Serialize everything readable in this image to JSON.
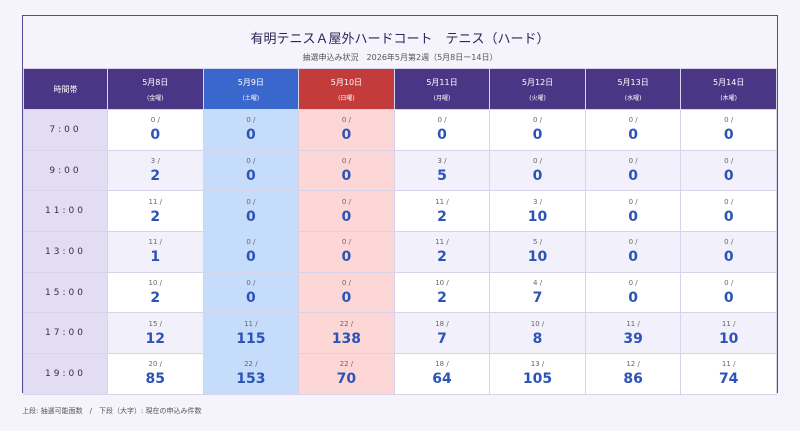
{
  "header": {
    "title": "有明テニスＡ屋外ハードコート　テニス（ハード）",
    "subtitle": "抽選申込み状況　2026年5月第2週（5月8日ー14日）"
  },
  "table": {
    "corner": "時間帯",
    "separator": "/",
    "columns": [
      {
        "date": "5月8日",
        "day": "(金曜)",
        "header_color": "#4b3585"
      },
      {
        "date": "5月9日",
        "day": "(土曜)",
        "header_color": "#3a67cc",
        "body_color": "#c6dcfb"
      },
      {
        "date": "5月10日",
        "day": "(日曜)",
        "header_color": "#c33b3b",
        "body_color": "#fdd6d6"
      },
      {
        "date": "5月11日",
        "day": "(月曜)",
        "header_color": "#4b3585"
      },
      {
        "date": "5月12日",
        "day": "(火曜)",
        "header_color": "#4b3585"
      },
      {
        "date": "5月13日",
        "day": "(水曜)",
        "header_color": "#4b3585"
      },
      {
        "date": "5月14日",
        "day": "(木曜)",
        "header_color": "#4b3585"
      }
    ],
    "rows": [
      {
        "time": "7:00",
        "cells": [
          {
            "available": 0,
            "applied": 0
          },
          {
            "available": 0,
            "applied": 0
          },
          {
            "available": 0,
            "applied": 0
          },
          {
            "available": 0,
            "applied": 0
          },
          {
            "available": 0,
            "applied": 0
          },
          {
            "available": 0,
            "applied": 0
          },
          {
            "available": 0,
            "applied": 0
          }
        ]
      },
      {
        "time": "9:00",
        "cells": [
          {
            "available": 3,
            "applied": 2
          },
          {
            "available": 0,
            "applied": 0
          },
          {
            "available": 0,
            "applied": 0
          },
          {
            "available": 3,
            "applied": 5
          },
          {
            "available": 0,
            "applied": 0
          },
          {
            "available": 0,
            "applied": 0
          },
          {
            "available": 0,
            "applied": 0
          }
        ]
      },
      {
        "time": "11:00",
        "cells": [
          {
            "available": 11,
            "applied": 2
          },
          {
            "available": 0,
            "applied": 0
          },
          {
            "available": 0,
            "applied": 0
          },
          {
            "available": 11,
            "applied": 2
          },
          {
            "available": 3,
            "applied": 10
          },
          {
            "available": 0,
            "applied": 0
          },
          {
            "available": 0,
            "applied": 0
          }
        ]
      },
      {
        "time": "13:00",
        "cells": [
          {
            "available": 11,
            "applied": 1
          },
          {
            "available": 0,
            "applied": 0
          },
          {
            "available": 0,
            "applied": 0
          },
          {
            "available": 11,
            "applied": 2
          },
          {
            "available": 5,
            "applied": 10
          },
          {
            "available": 0,
            "applied": 0
          },
          {
            "available": 0,
            "applied": 0
          }
        ]
      },
      {
        "time": "15:00",
        "cells": [
          {
            "available": 10,
            "applied": 2
          },
          {
            "available": 0,
            "applied": 0
          },
          {
            "available": 0,
            "applied": 0
          },
          {
            "available": 10,
            "applied": 2
          },
          {
            "available": 4,
            "applied": 7
          },
          {
            "available": 0,
            "applied": 0
          },
          {
            "available": 0,
            "applied": 0
          }
        ]
      },
      {
        "time": "17:00",
        "cells": [
          {
            "available": 15,
            "applied": 12
          },
          {
            "available": 11,
            "applied": 115
          },
          {
            "available": 22,
            "applied": 138
          },
          {
            "available": 18,
            "applied": 7
          },
          {
            "available": 10,
            "applied": 8
          },
          {
            "available": 11,
            "applied": 39
          },
          {
            "available": 11,
            "applied": 10
          }
        ]
      },
      {
        "time": "19:00",
        "cells": [
          {
            "available": 20,
            "applied": 85
          },
          {
            "available": 22,
            "applied": 153
          },
          {
            "available": 22,
            "applied": 70
          },
          {
            "available": 18,
            "applied": 64
          },
          {
            "available": 13,
            "applied": 105
          },
          {
            "available": 12,
            "applied": 86
          },
          {
            "available": 11,
            "applied": 74
          }
        ]
      }
    ]
  },
  "footer": {
    "note": "上段: 抽選可能面数　/　下段（大字）: 現在の申込み件数"
  }
}
